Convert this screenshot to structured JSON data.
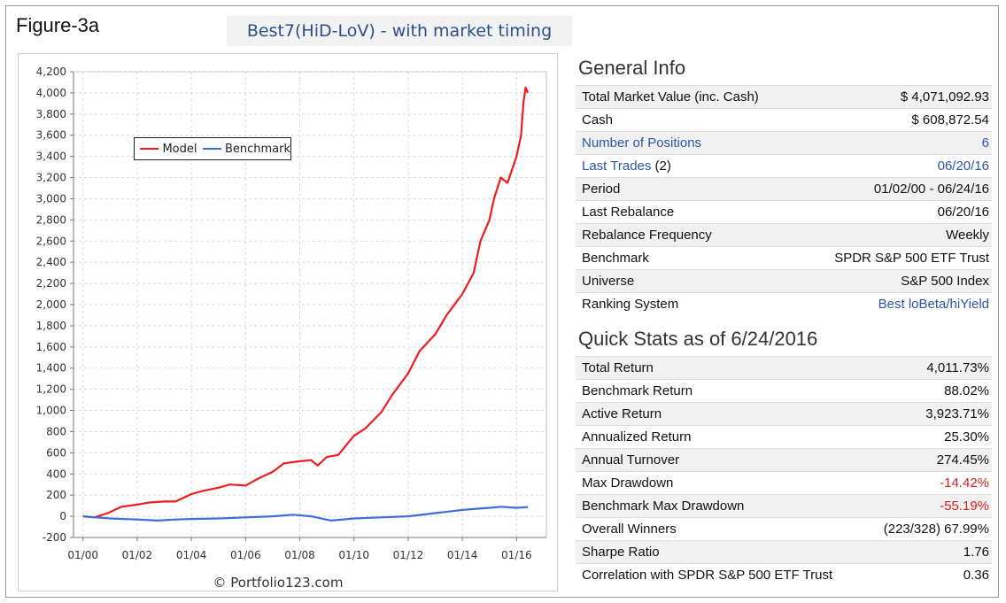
{
  "figure_label": "Figure-3a",
  "figure_title": "Best7(HiD-LoV) - with market timing",
  "watermark": "© Portfolio123.com",
  "chart_data": {
    "type": "line",
    "x_ticks": [
      "01/00",
      "01/02",
      "01/04",
      "01/06",
      "01/08",
      "01/10",
      "01/12",
      "01/14",
      "01/16"
    ],
    "y_ticks": [
      -200,
      0,
      200,
      400,
      600,
      800,
      1000,
      1200,
      1400,
      1600,
      1800,
      2000,
      2200,
      2400,
      2600,
      2800,
      3000,
      3200,
      3400,
      3600,
      3800,
      4000,
      4200
    ],
    "ylim": [
      -200,
      4200
    ],
    "xlim": [
      "2000-01",
      "2016-12"
    ],
    "grid": true,
    "legend_position": "upper-left",
    "series": [
      {
        "name": "Model",
        "color": "#ee1c1c",
        "points": [
          [
            "2000-01",
            0
          ],
          [
            "2000-06",
            -10
          ],
          [
            "2000-12",
            30
          ],
          [
            "2001-06",
            90
          ],
          [
            "2002-01",
            110
          ],
          [
            "2002-06",
            130
          ],
          [
            "2003-01",
            140
          ],
          [
            "2003-06",
            140
          ],
          [
            "2004-01",
            210
          ],
          [
            "2004-06",
            240
          ],
          [
            "2005-01",
            270
          ],
          [
            "2005-06",
            300
          ],
          [
            "2006-01",
            290
          ],
          [
            "2006-06",
            350
          ],
          [
            "2007-01",
            420
          ],
          [
            "2007-06",
            500
          ],
          [
            "2008-01",
            520
          ],
          [
            "2008-06",
            530
          ],
          [
            "2008-09",
            480
          ],
          [
            "2009-01",
            560
          ],
          [
            "2009-06",
            580
          ],
          [
            "2010-01",
            760
          ],
          [
            "2010-06",
            830
          ],
          [
            "2011-01",
            980
          ],
          [
            "2011-06",
            1150
          ],
          [
            "2012-01",
            1350
          ],
          [
            "2012-06",
            1560
          ],
          [
            "2013-01",
            1720
          ],
          [
            "2013-06",
            1900
          ],
          [
            "2014-01",
            2100
          ],
          [
            "2014-06",
            2300
          ],
          [
            "2014-09",
            2600
          ],
          [
            "2015-01",
            2800
          ],
          [
            "2015-03",
            3000
          ],
          [
            "2015-06",
            3200
          ],
          [
            "2015-09",
            3150
          ],
          [
            "2016-01",
            3400
          ],
          [
            "2016-03",
            3600
          ],
          [
            "2016-04",
            3900
          ],
          [
            "2016-05",
            4050
          ],
          [
            "2016-06",
            4000
          ]
        ]
      },
      {
        "name": "Benchmark",
        "color": "#3a6fd8",
        "points": [
          [
            "2000-01",
            0
          ],
          [
            "2001-01",
            -20
          ],
          [
            "2002-01",
            -30
          ],
          [
            "2002-10",
            -40
          ],
          [
            "2003-06",
            -30
          ],
          [
            "2004-01",
            -25
          ],
          [
            "2005-01",
            -20
          ],
          [
            "2006-01",
            -10
          ],
          [
            "2007-01",
            0
          ],
          [
            "2007-10",
            15
          ],
          [
            "2008-06",
            0
          ],
          [
            "2009-03",
            -40
          ],
          [
            "2010-01",
            -20
          ],
          [
            "2011-01",
            -10
          ],
          [
            "2012-01",
            0
          ],
          [
            "2013-01",
            30
          ],
          [
            "2014-01",
            60
          ],
          [
            "2015-01",
            80
          ],
          [
            "2015-06",
            90
          ],
          [
            "2016-01",
            80
          ],
          [
            "2016-06",
            88
          ]
        ]
      }
    ]
  },
  "general_info": {
    "title": "General Info",
    "rows": [
      {
        "label": "Total Market Value (inc. Cash)",
        "value": "$ 4,071,092.93"
      },
      {
        "label": "Cash",
        "value": "$ 608,872.54"
      },
      {
        "label": "Number of Positions",
        "value": "6",
        "link": true
      },
      {
        "label": "Last Trades",
        "label_suffix": " (2)",
        "value": "06/20/16",
        "link": true
      },
      {
        "label": "Period",
        "value": "01/02/00 - 06/24/16"
      },
      {
        "label": "Last Rebalance",
        "value": "06/20/16"
      },
      {
        "label": "Rebalance Frequency",
        "value": "Weekly"
      },
      {
        "label": "Benchmark",
        "value": "SPDR S&P 500 ETF Trust"
      },
      {
        "label": "Universe",
        "value": "S&P 500 Index"
      },
      {
        "label": "Ranking System",
        "value": "Best loBeta/hiYield",
        "value_link": true
      }
    ]
  },
  "quick_stats": {
    "title": "Quick Stats as of 6/24/2016",
    "rows": [
      {
        "label": "Total Return",
        "value": "4,011.73%"
      },
      {
        "label": "Benchmark Return",
        "value": "88.02%"
      },
      {
        "label": "Active Return",
        "value": "3,923.71%"
      },
      {
        "label": "Annualized Return",
        "value": "25.30%"
      },
      {
        "label": "Annual Turnover",
        "value": "274.45%"
      },
      {
        "label": "Max Drawdown",
        "value": "-14.42%",
        "negative": true
      },
      {
        "label": "Benchmark Max Drawdown",
        "value": "-55.19%",
        "negative": true
      },
      {
        "label": "Overall Winners",
        "value": "(223/328) 67.99%"
      },
      {
        "label": "Sharpe Ratio",
        "value": "1.76"
      },
      {
        "label": "Correlation with SPDR S&P 500 ETF Trust",
        "value": "0.36"
      }
    ]
  }
}
